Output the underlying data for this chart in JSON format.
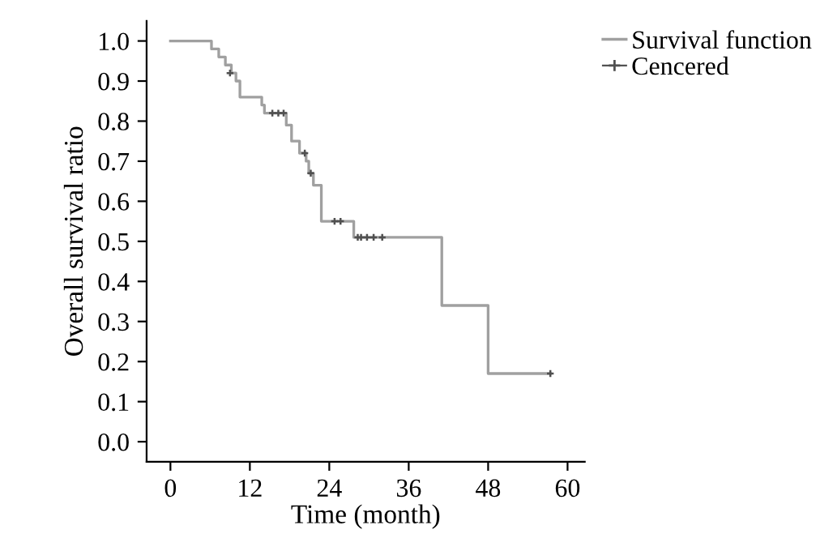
{
  "chart_data": {
    "type": "step",
    "xlabel": "Time (month)",
    "ylabel": "Overall survival ratio",
    "series": [
      {
        "name": "Survival function",
        "color": "#a0a0a0",
        "x": [
          0,
          6.2,
          7.3,
          8.3,
          9.2,
          9.9,
          10.5,
          13.8,
          14.2,
          17.5,
          18.3,
          19.5,
          20.5,
          20.9,
          21.6,
          22.8,
          27.7,
          41.0,
          48.0,
          57.4
        ],
        "values": [
          1.0,
          0.98,
          0.96,
          0.94,
          0.92,
          0.9,
          0.86,
          0.84,
          0.82,
          0.79,
          0.75,
          0.72,
          0.7,
          0.67,
          0.64,
          0.55,
          0.51,
          0.34,
          0.17,
          0.17
        ]
      },
      {
        "name": "Cencered",
        "type": "scatter",
        "marker": "cross",
        "color": "#505050",
        "x": [
          9.0,
          15.4,
          16.3,
          17.1,
          20.3,
          21.2,
          24.8,
          25.7,
          28.3,
          28.8,
          29.7,
          30.7,
          32.0,
          57.4
        ],
        "values": [
          0.92,
          0.82,
          0.82,
          0.82,
          0.72,
          0.67,
          0.55,
          0.55,
          0.51,
          0.51,
          0.51,
          0.51,
          0.51,
          0.17
        ]
      }
    ],
    "xlim": [
      -3.6,
      62.6
    ],
    "ylim": [
      -0.05,
      1.05
    ],
    "xticks": [
      0,
      12,
      24,
      36,
      48,
      60
    ],
    "yticks": [
      {
        "value": 0,
        "label": "0.0"
      },
      {
        "value": 0.1,
        "label": "0.1"
      },
      {
        "value": 0.2,
        "label": "0.2"
      },
      {
        "value": 0.3,
        "label": "0.3"
      },
      {
        "value": 0.4,
        "label": "0.4"
      },
      {
        "value": 0.5,
        "label": "0.5"
      },
      {
        "value": 0.6,
        "label": "0.6"
      },
      {
        "value": 0.7,
        "label": "0.7"
      },
      {
        "value": 0.8,
        "label": "0.8"
      },
      {
        "value": 0.9,
        "label": "0.9"
      },
      {
        "value": 1.0,
        "label": "1.0"
      }
    ],
    "grid": false,
    "legend": "top right"
  }
}
